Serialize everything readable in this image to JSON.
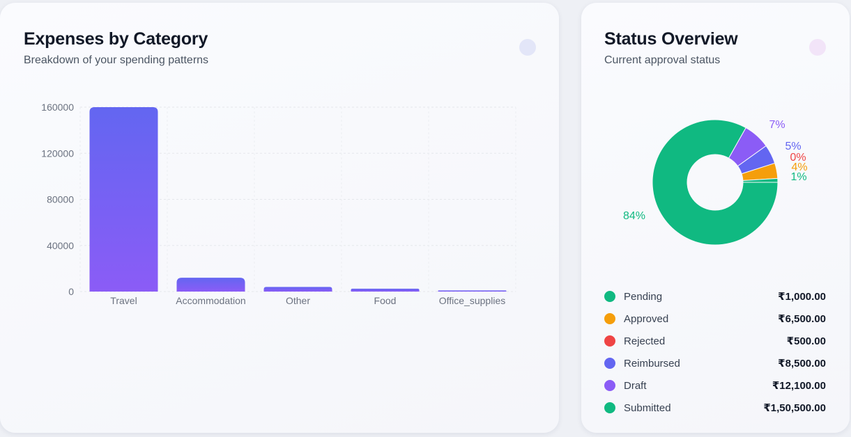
{
  "expenses_card": {
    "title": "Expenses by Category",
    "subtitle": "Breakdown of your spending patterns"
  },
  "status_card": {
    "title": "Status Overview",
    "subtitle": "Current approval status"
  },
  "chart_data": [
    {
      "type": "bar",
      "categories": [
        "Travel",
        "Accommodation",
        "Other",
        "Food",
        "Office_supplies"
      ],
      "values": [
        160000,
        12000,
        4000,
        2500,
        1000
      ],
      "ylim": [
        0,
        160000
      ],
      "yticks": [
        0,
        40000,
        80000,
        120000,
        160000
      ],
      "grid": true,
      "colors": {
        "bar_top": "#6366f1",
        "bar_bottom": "#8b5cf6"
      }
    },
    {
      "type": "pie",
      "donut": true,
      "slices": [
        {
          "label": "Submitted",
          "percent": 84,
          "color": "#10b981"
        },
        {
          "label": "Draft",
          "percent": 7,
          "color": "#8b5cf6"
        },
        {
          "label": "Reimbursed",
          "percent": 5,
          "color": "#6366f1"
        },
        {
          "label": "Rejected",
          "percent": 0,
          "color": "#ef4444"
        },
        {
          "label": "Approved",
          "percent": 4,
          "color": "#f59e0b"
        },
        {
          "label": "Pending",
          "percent": 1,
          "color": "#10b981"
        }
      ],
      "slice_labels": [
        "84%",
        "7%",
        "5%",
        "0%",
        "4%",
        "1%"
      ]
    }
  ],
  "legend": [
    {
      "label": "Pending",
      "value": "₹1,000.00",
      "color": "#10b981"
    },
    {
      "label": "Approved",
      "value": "₹6,500.00",
      "color": "#f59e0b"
    },
    {
      "label": "Rejected",
      "value": "₹500.00",
      "color": "#ef4444"
    },
    {
      "label": "Reimbursed",
      "value": "₹8,500.00",
      "color": "#6366f1"
    },
    {
      "label": "Draft",
      "value": "₹12,100.00",
      "color": "#8b5cf6"
    },
    {
      "label": "Submitted",
      "value": "₹1,50,500.00",
      "color": "#10b981"
    }
  ]
}
